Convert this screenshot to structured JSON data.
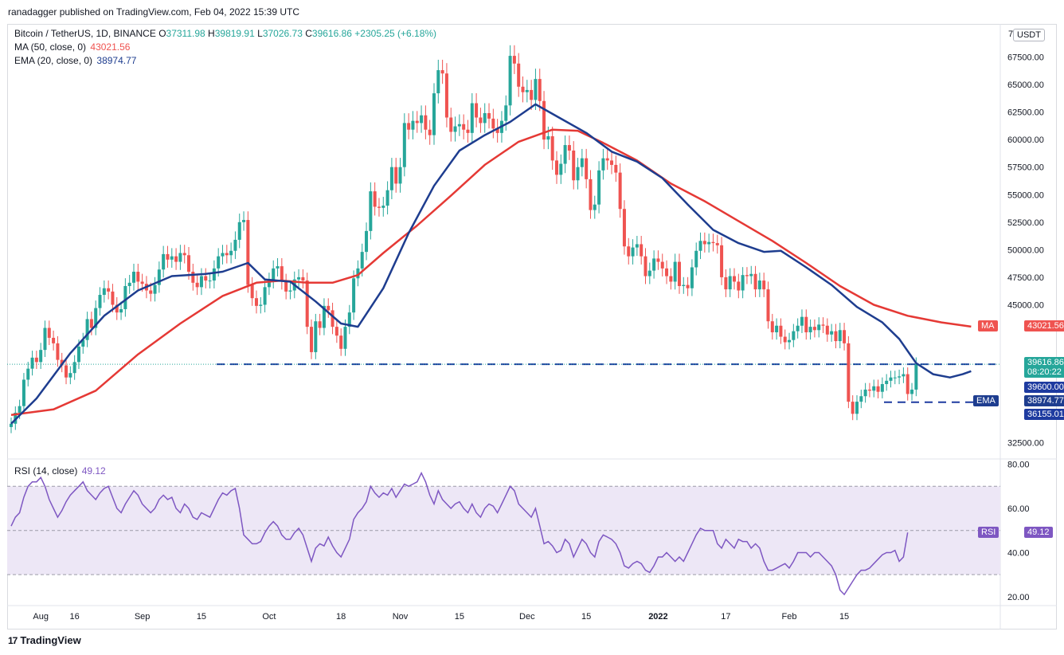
{
  "header": {
    "publisher_text": "ranadagger published on TradingView.com, Feb 04, 2022 15:39 UTC"
  },
  "legend": {
    "symbol": "Bitcoin / TetherUS, 1D, BINANCE",
    "ohlc": {
      "o_label": "O",
      "o": "37311.98",
      "h_label": "H",
      "h": "39819.91",
      "l_label": "L",
      "l": "37026.73",
      "c_label": "C",
      "c": "39616.86",
      "change": "+2305.25 (+6.18%)"
    },
    "ma_label": "MA (50, close, 0)",
    "ma_value": "43021.56",
    "ema_label": "EMA (20, close, 0)",
    "ema_value": "38974.77",
    "rsi_label": "RSI (14, close)",
    "rsi_value": "49.12"
  },
  "currency_badge": "USDT",
  "price_axis": {
    "top_partial": "7",
    "ticks": [
      "67500.00",
      "65000.00",
      "62500.00",
      "60000.00",
      "57500.00",
      "55000.00",
      "52500.00",
      "50000.00",
      "47500.00",
      "45000.00",
      "32500.00"
    ],
    "tick_values": [
      67500,
      65000,
      62500,
      60000,
      57500,
      55000,
      52500,
      50000,
      47500,
      45000,
      32500
    ]
  },
  "rsi_axis": {
    "ticks": [
      "80.00",
      "60.00",
      "40.00",
      "20.00"
    ],
    "tick_values": [
      80,
      60,
      40,
      20
    ]
  },
  "time_axis": {
    "labels": [
      "Aug",
      "16",
      "Sep",
      "15",
      "Oct",
      "18",
      "Nov",
      "15",
      "Dec",
      "15",
      "2022",
      "17",
      "Feb",
      "15"
    ]
  },
  "tags": {
    "price": "39616.86",
    "countdown": "08:20:22",
    "support1": "39600.00",
    "ema_label": "EMA",
    "ema": "38974.77",
    "support2": "36155.01",
    "ma_label": "MA",
    "ma": "43021.56",
    "rsi_label": "RSI",
    "rsi": "49.12"
  },
  "footer": {
    "brand": "TradingView",
    "logo": "17"
  },
  "colors": {
    "up": "#26a69a",
    "down": "#ef5350",
    "ema": "#1e3d8f",
    "ma": "#e53935",
    "rsi": "#7e57c2",
    "rsi_band": "#ede7f6",
    "level": "#1e3ba0"
  },
  "chart_data": {
    "type": "candlestick",
    "title": "Bitcoin / TetherUS, 1D, BINANCE",
    "ylim": [
      31000,
      70500
    ],
    "rsi_ylim": [
      16,
      82
    ],
    "rsi_band": [
      30,
      70
    ],
    "rsi_mid": 50,
    "horizontal_levels": [
      39600,
      36155.01
    ],
    "x_ticks": [
      {
        "label": "Aug",
        "day": 7
      },
      {
        "label": "16",
        "day": 15
      },
      {
        "label": "Sep",
        "day": 31
      },
      {
        "label": "15",
        "day": 45
      },
      {
        "label": "Oct",
        "day": 61
      },
      {
        "label": "18",
        "day": 78
      },
      {
        "label": "Nov",
        "day": 92
      },
      {
        "label": "15",
        "day": 106
      },
      {
        "label": "Dec",
        "day": 122
      },
      {
        "label": "15",
        "day": 136
      },
      {
        "label": "2022",
        "day": 153
      },
      {
        "label": "17",
        "day": 169
      },
      {
        "label": "Feb",
        "day": 184
      },
      {
        "label": "15",
        "day": 197
      }
    ],
    "close": [
      34200,
      35200,
      35800,
      38200,
      39200,
      40200,
      39800,
      40900,
      42900,
      42000,
      41500,
      40000,
      39500,
      38400,
      38800,
      39800,
      41200,
      41800,
      43700,
      42900,
      44700,
      45900,
      46500,
      46200,
      45000,
      44300,
      44600,
      46700,
      47000,
      48000,
      47100,
      46900,
      46300,
      46000,
      46800,
      48200,
      49600,
      49100,
      49400,
      48900,
      49700,
      49500,
      48000,
      47000,
      46600,
      47600,
      47200,
      47200,
      48300,
      49400,
      49700,
      49500,
      49900,
      50900,
      52500,
      52700,
      46800,
      45600,
      44900,
      45000,
      46600,
      47200,
      48300,
      48500,
      47100,
      46200,
      46300,
      47300,
      47500,
      47200,
      43000,
      40700,
      43500,
      42900,
      44900,
      44500,
      43000,
      42200,
      41000,
      43000,
      44300,
      47400,
      48300,
      49800,
      51700,
      55300,
      53900,
      53800,
      54000,
      55400,
      57500,
      56000,
      57500,
      61500,
      60900,
      61700,
      61500,
      62200,
      60900,
      60400,
      64200,
      66300,
      66000,
      62000,
      60700,
      61200,
      61400,
      60900,
      60600,
      63300,
      62000,
      61500,
      62400,
      61900,
      61000,
      60600,
      61700,
      63100,
      67600,
      66900,
      64800,
      64300,
      64500,
      63600,
      65500,
      63500,
      60000,
      60300,
      58100,
      56800,
      57800,
      59500,
      59000,
      56300,
      57500,
      58300,
      56400,
      53600,
      54100,
      57200,
      58300,
      58100,
      57700,
      57000,
      53700,
      50300,
      49400,
      50200,
      50500,
      49400,
      47600,
      48100,
      49200,
      48900,
      48300,
      47600,
      47100,
      48900,
      46700,
      46800,
      46500,
      48400,
      49900,
      50800,
      50500,
      50700,
      50600,
      50400,
      47500,
      46400,
      47600,
      47100,
      46300,
      47700,
      47600,
      47800,
      46400,
      47200,
      46400,
      43500,
      42500,
      43100,
      42100,
      41600,
      41800,
      42600,
      43100,
      43900,
      42500,
      43000,
      42700,
      43200,
      43100,
      42300,
      42600,
      41700,
      42700,
      41500,
      36200,
      35100,
      36200,
      36700,
      37300,
      37200,
      37600,
      37100,
      37800,
      38100,
      38400,
      38400,
      38500,
      38700,
      36900,
      37300,
      39600
    ],
    "open": [
      33900,
      34200,
      35200,
      35800,
      38200,
      39200,
      40200,
      39800,
      40900,
      42900,
      42000,
      41500,
      40000,
      39500,
      38400,
      38800,
      39800,
      41200,
      41800,
      43700,
      42900,
      44700,
      45900,
      46500,
      46200,
      45000,
      44300,
      44600,
      46700,
      47000,
      48000,
      47100,
      46900,
      46300,
      46000,
      46800,
      48200,
      49600,
      49100,
      49400,
      48900,
      49700,
      49500,
      48000,
      47000,
      46600,
      47600,
      47200,
      47200,
      48300,
      49400,
      49700,
      49500,
      49900,
      50900,
      52500,
      52700,
      46800,
      45600,
      44900,
      45000,
      46600,
      47200,
      48300,
      48500,
      47100,
      46200,
      46300,
      47300,
      47500,
      47200,
      43000,
      40700,
      43500,
      42900,
      44900,
      44500,
      43000,
      42200,
      41000,
      43000,
      44300,
      47400,
      48300,
      49800,
      51700,
      55300,
      53900,
      53800,
      54000,
      55400,
      57500,
      56000,
      57500,
      61500,
      60900,
      61700,
      61500,
      62200,
      60900,
      60400,
      64200,
      66300,
      66000,
      62000,
      60700,
      61200,
      61400,
      60900,
      60600,
      63300,
      62000,
      61500,
      62400,
      61900,
      61000,
      60600,
      61700,
      63100,
      67600,
      66900,
      64800,
      64300,
      64500,
      63600,
      65500,
      63500,
      60000,
      60300,
      58100,
      56800,
      57800,
      59500,
      59000,
      56300,
      57500,
      58300,
      56400,
      53600,
      54100,
      57200,
      58300,
      58100,
      57700,
      57000,
      53700,
      50300,
      49400,
      50200,
      50500,
      49400,
      47600,
      48100,
      49200,
      48900,
      48300,
      47600,
      47100,
      48900,
      46700,
      46800,
      46500,
      48400,
      49900,
      50800,
      50500,
      50700,
      50600,
      50400,
      47500,
      46400,
      47600,
      47100,
      46300,
      47700,
      47600,
      47800,
      46400,
      47200,
      46400,
      43500,
      42500,
      43100,
      42100,
      41600,
      41800,
      42600,
      43100,
      43900,
      42500,
      43000,
      42700,
      43200,
      43100,
      42300,
      42600,
      41700,
      42700,
      41500,
      36200,
      35100,
      36200,
      36700,
      37300,
      37200,
      37600,
      37100,
      37800,
      38100,
      38400,
      38400,
      38500,
      38700,
      36900,
      37300
    ],
    "ema20_points": [
      [
        0,
        34200
      ],
      [
        6,
        36500
      ],
      [
        14,
        40600
      ],
      [
        22,
        44000
      ],
      [
        30,
        46300
      ],
      [
        38,
        47600
      ],
      [
        46,
        47800
      ],
      [
        50,
        48000
      ],
      [
        56,
        48800
      ],
      [
        60,
        47300
      ],
      [
        66,
        47100
      ],
      [
        72,
        45300
      ],
      [
        78,
        43300
      ],
      [
        82,
        43000
      ],
      [
        88,
        46500
      ],
      [
        94,
        51500
      ],
      [
        100,
        55800
      ],
      [
        106,
        59000
      ],
      [
        112,
        60400
      ],
      [
        118,
        61600
      ],
      [
        124,
        63200
      ],
      [
        130,
        61900
      ],
      [
        136,
        60600
      ],
      [
        142,
        58900
      ],
      [
        148,
        58000
      ],
      [
        154,
        56500
      ],
      [
        160,
        54100
      ],
      [
        166,
        51800
      ],
      [
        172,
        50600
      ],
      [
        178,
        49800
      ],
      [
        182,
        49900
      ],
      [
        188,
        48400
      ],
      [
        194,
        46800
      ],
      [
        200,
        44800
      ],
      [
        206,
        43400
      ],
      [
        210,
        41900
      ],
      [
        214,
        39700
      ],
      [
        218,
        38700
      ],
      [
        222,
        38400
      ],
      [
        225,
        38700
      ],
      [
        227,
        38970
      ]
    ],
    "ma50_points": [
      [
        0,
        35000
      ],
      [
        10,
        35500
      ],
      [
        20,
        37200
      ],
      [
        30,
        40500
      ],
      [
        40,
        43300
      ],
      [
        50,
        45800
      ],
      [
        58,
        47000
      ],
      [
        64,
        47200
      ],
      [
        70,
        47000
      ],
      [
        76,
        47000
      ],
      [
        82,
        47700
      ],
      [
        88,
        49700
      ],
      [
        96,
        52200
      ],
      [
        104,
        54900
      ],
      [
        112,
        57700
      ],
      [
        120,
        59800
      ],
      [
        128,
        60900
      ],
      [
        134,
        60800
      ],
      [
        140,
        59700
      ],
      [
        148,
        58100
      ],
      [
        156,
        56000
      ],
      [
        164,
        54400
      ],
      [
        172,
        52600
      ],
      [
        180,
        50800
      ],
      [
        188,
        48800
      ],
      [
        196,
        46700
      ],
      [
        204,
        45000
      ],
      [
        212,
        44000
      ],
      [
        220,
        43400
      ],
      [
        227,
        43020
      ]
    ],
    "rsi": [
      52,
      56,
      58,
      65,
      70,
      72,
      72,
      74,
      70,
      64,
      60,
      56,
      59,
      63,
      66,
      68,
      70,
      72,
      68,
      66,
      64,
      67,
      69,
      70,
      65,
      60,
      58,
      62,
      65,
      68,
      66,
      62,
      60,
      58,
      60,
      64,
      66,
      64,
      65,
      60,
      58,
      62,
      60,
      56,
      55,
      58,
      57,
      56,
      60,
      64,
      67,
      66,
      68,
      69,
      60,
      48,
      46,
      44,
      44,
      45,
      49,
      52,
      54,
      52,
      48,
      46,
      46,
      49,
      51,
      48,
      42,
      36,
      42,
      44,
      43,
      47,
      43,
      40,
      38,
      42,
      46,
      55,
      58,
      60,
      63,
      70,
      67,
      65,
      67,
      66,
      69,
      65,
      68,
      71,
      70,
      71,
      72,
      76,
      72,
      66,
      62,
      68,
      64,
      62,
      60,
      62,
      63,
      60,
      58,
      62,
      58,
      56,
      60,
      62,
      61,
      58,
      62,
      66,
      70,
      68,
      62,
      60,
      58,
      56,
      60,
      52,
      44,
      45,
      43,
      40,
      41,
      46,
      44,
      38,
      42,
      46,
      44,
      40,
      38,
      45,
      48,
      47,
      46,
      44,
      40,
      34,
      33,
      35,
      36,
      35,
      32,
      31,
      34,
      38,
      38,
      40,
      38,
      36,
      38,
      36,
      40,
      44,
      48,
      51,
      50,
      50,
      50,
      44,
      42,
      46,
      44,
      42,
      46,
      45,
      45,
      42,
      44,
      42,
      36,
      32,
      32,
      33,
      34,
      35,
      33,
      36,
      40,
      40,
      40,
      38,
      40,
      40,
      38,
      36,
      34,
      30,
      23,
      21,
      24,
      27,
      30,
      32,
      32,
      33,
      35,
      37,
      39,
      40,
      40,
      41,
      36,
      38,
      49.12
    ]
  }
}
